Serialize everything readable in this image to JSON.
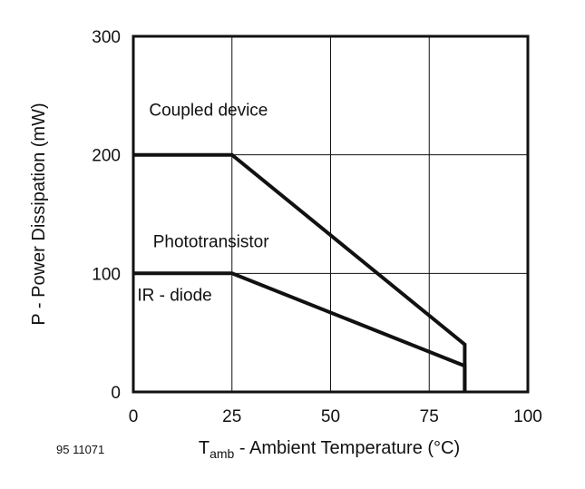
{
  "chart_data": {
    "type": "line",
    "figure_code": "95 11071",
    "ylabel": "P - Power Dissipation (mW)",
    "xlabel": {
      "main": "T",
      "subscript": "amb",
      "rest": " - Ambient Temperature (°C)"
    },
    "xlim": [
      0,
      100
    ],
    "ylim": [
      0,
      300
    ],
    "xticks": [
      0,
      25,
      50,
      75,
      100
    ],
    "yticks": [
      0,
      100,
      200,
      300
    ],
    "grid": true,
    "series": [
      {
        "name": "Coupled device",
        "x": [
          0,
          25,
          84,
          84
        ],
        "y": [
          200,
          200,
          40,
          0
        ]
      },
      {
        "name": "IR - diode",
        "x": [
          0,
          25,
          84,
          84
        ],
        "y": [
          100,
          100,
          22,
          0
        ]
      }
    ],
    "annotations": [
      {
        "text": "Coupled device",
        "x": 4,
        "y": 233
      },
      {
        "text": "Phototransistor",
        "x": 5,
        "y": 122
      },
      {
        "text": "IR - diode",
        "x": 1,
        "y": 77
      }
    ]
  }
}
